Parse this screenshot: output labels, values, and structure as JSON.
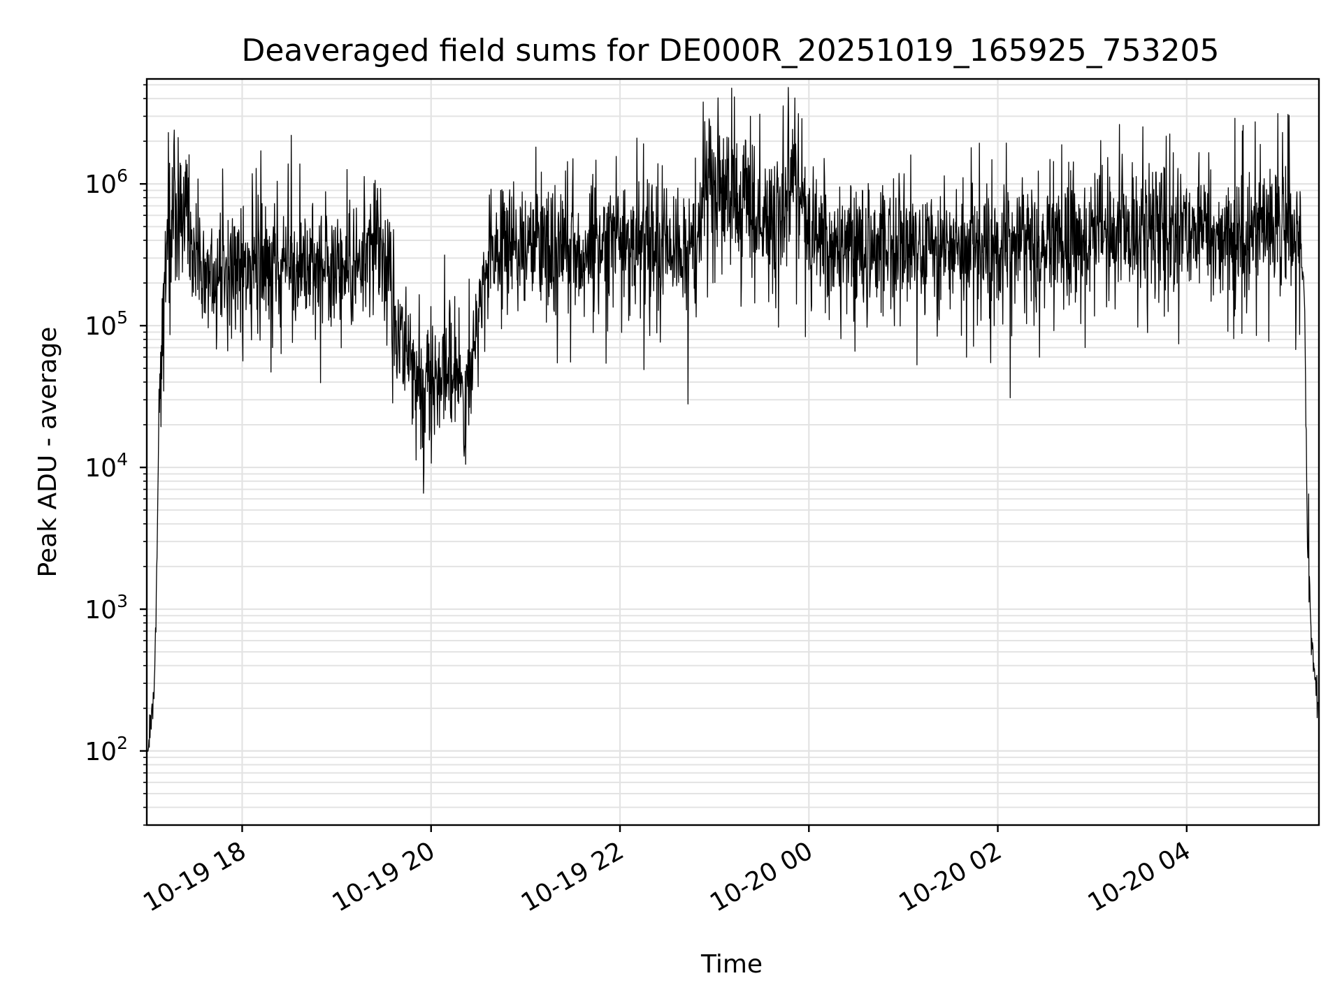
{
  "chart_data": {
    "type": "line",
    "title": "Deaveraged field sums for DE000R_20251019_165925_753205",
    "xlabel": "Time",
    "ylabel": "Peak ADU - average",
    "yscale": "log",
    "ylim": [
      30,
      5500000
    ],
    "xlim_hours": [
      16.99,
      29.4
    ],
    "x_ticks": [
      {
        "hour": 18,
        "label": "10-19 18"
      },
      {
        "hour": 20,
        "label": "10-19 20"
      },
      {
        "hour": 22,
        "label": "10-19 22"
      },
      {
        "hour": 24,
        "label": "10-20 00"
      },
      {
        "hour": 26,
        "label": "10-20 02"
      },
      {
        "hour": 28,
        "label": "10-20 04"
      }
    ],
    "y_ticks": [
      {
        "value": 100,
        "base": "10",
        "exp": "2"
      },
      {
        "value": 1000,
        "base": "10",
        "exp": "3"
      },
      {
        "value": 10000,
        "base": "10",
        "exp": "4"
      },
      {
        "value": 100000,
        "base": "10",
        "exp": "5"
      },
      {
        "value": 1000000,
        "base": "10",
        "exp": "6"
      }
    ],
    "grid": true,
    "series": [
      {
        "name": "field sums",
        "color": "#000000",
        "envelope_log10": [
          [
            17.0,
            2.0
          ],
          [
            17.06,
            2.3
          ],
          [
            17.09,
            3.0
          ],
          [
            17.12,
            4.5
          ],
          [
            17.18,
            5.4
          ],
          [
            17.25,
            5.85
          ],
          [
            17.35,
            5.8
          ],
          [
            17.45,
            5.5
          ],
          [
            17.6,
            5.4
          ],
          [
            17.8,
            5.38
          ],
          [
            18.0,
            5.42
          ],
          [
            18.3,
            5.45
          ],
          [
            18.6,
            5.45
          ],
          [
            18.9,
            5.4
          ],
          [
            19.2,
            5.4
          ],
          [
            19.4,
            5.6
          ],
          [
            19.55,
            5.3
          ],
          [
            19.7,
            4.85
          ],
          [
            19.85,
            4.65
          ],
          [
            20.0,
            4.6
          ],
          [
            20.1,
            4.7
          ],
          [
            20.2,
            4.75
          ],
          [
            20.3,
            4.55
          ],
          [
            20.4,
            4.6
          ],
          [
            20.5,
            5.2
          ],
          [
            20.6,
            5.45
          ],
          [
            20.8,
            5.5
          ],
          [
            21.0,
            5.52
          ],
          [
            21.5,
            5.53
          ],
          [
            22.0,
            5.55
          ],
          [
            22.5,
            5.5
          ],
          [
            22.8,
            5.55
          ],
          [
            22.95,
            6.1
          ],
          [
            23.1,
            5.95
          ],
          [
            23.3,
            5.8
          ],
          [
            23.5,
            5.75
          ],
          [
            23.7,
            5.78
          ],
          [
            23.85,
            6.05
          ],
          [
            24.0,
            5.65
          ],
          [
            24.3,
            5.58
          ],
          [
            24.8,
            5.55
          ],
          [
            25.3,
            5.57
          ],
          [
            25.8,
            5.55
          ],
          [
            26.1,
            5.55
          ],
          [
            26.4,
            5.6
          ],
          [
            26.8,
            5.65
          ],
          [
            27.3,
            5.65
          ],
          [
            27.8,
            5.65
          ],
          [
            28.3,
            5.65
          ],
          [
            28.8,
            5.7
          ],
          [
            29.1,
            5.7
          ],
          [
            29.2,
            5.65
          ],
          [
            29.25,
            5.1
          ],
          [
            29.28,
            3.3
          ],
          [
            29.32,
            2.8
          ],
          [
            29.36,
            2.5
          ],
          [
            29.39,
            2.25
          ]
        ],
        "spikes": [
          {
            "hour": 17.22,
            "value": 2300000
          },
          {
            "hour": 17.28,
            "value": 2400000
          },
          {
            "hour": 18.52,
            "value": 2200000
          },
          {
            "hour": 23.38,
            "value": 3000000
          },
          {
            "hour": 25.08,
            "value": 1600000
          },
          {
            "hour": 25.72,
            "value": 1800000
          },
          {
            "hour": 27.82,
            "value": 2250000
          },
          {
            "hour": 28.78,
            "value": 1900000
          },
          {
            "hour": 20.35,
            "value": 12000
          },
          {
            "hour": 22.72,
            "value": 28000
          },
          {
            "hour": 26.13,
            "value": 31000
          },
          {
            "hour": 29.29,
            "value": 6500
          }
        ]
      }
    ]
  }
}
